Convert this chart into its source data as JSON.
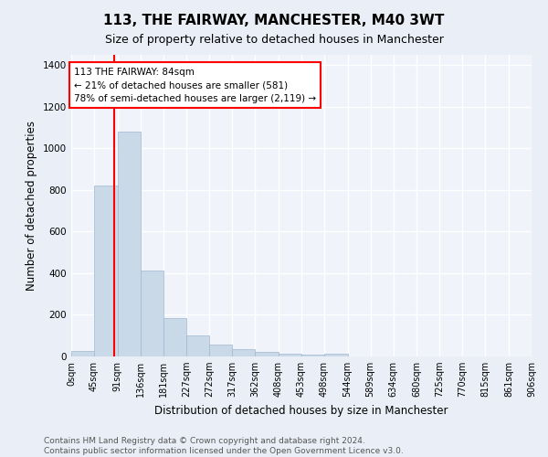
{
  "title": "113, THE FAIRWAY, MANCHESTER, M40 3WT",
  "subtitle": "Size of property relative to detached houses in Manchester",
  "xlabel": "Distribution of detached houses by size in Manchester",
  "ylabel": "Number of detached properties",
  "bar_color": "#c9d9e8",
  "bar_edge_color": "#a0b8d0",
  "bin_edges": [
    0,
    45,
    91,
    136,
    181,
    227,
    272,
    317,
    362,
    408,
    453,
    498,
    544,
    589,
    634,
    680,
    725,
    770,
    815,
    861,
    906
  ],
  "bin_labels": [
    "0sqm",
    "45sqm",
    "91sqm",
    "136sqm",
    "181sqm",
    "227sqm",
    "272sqm",
    "317sqm",
    "362sqm",
    "408sqm",
    "453sqm",
    "498sqm",
    "544sqm",
    "589sqm",
    "634sqm",
    "680sqm",
    "725sqm",
    "770sqm",
    "815sqm",
    "861sqm",
    "906sqm"
  ],
  "counts": [
    25,
    820,
    1080,
    415,
    185,
    100,
    57,
    35,
    22,
    14,
    10,
    12,
    0,
    0,
    0,
    0,
    0,
    0,
    0,
    0
  ],
  "red_line_x": 84,
  "annotation_text": "113 THE FAIRWAY: 84sqm\n← 21% of detached houses are smaller (581)\n78% of semi-detached houses are larger (2,119) →",
  "annotation_box_color": "white",
  "annotation_box_edge_color": "red",
  "ylim": [
    0,
    1450
  ],
  "footer_line1": "Contains HM Land Registry data © Crown copyright and database right 2024.",
  "footer_line2": "Contains public sector information licensed under the Open Government Licence v3.0.",
  "bg_color": "#eaeff7",
  "plot_bg_color": "#f0f4fa",
  "grid_color": "white",
  "title_fontsize": 11,
  "subtitle_fontsize": 9,
  "axis_label_fontsize": 8.5,
  "tick_fontsize": 7,
  "footer_fontsize": 6.5,
  "annotation_fontsize": 7.5
}
